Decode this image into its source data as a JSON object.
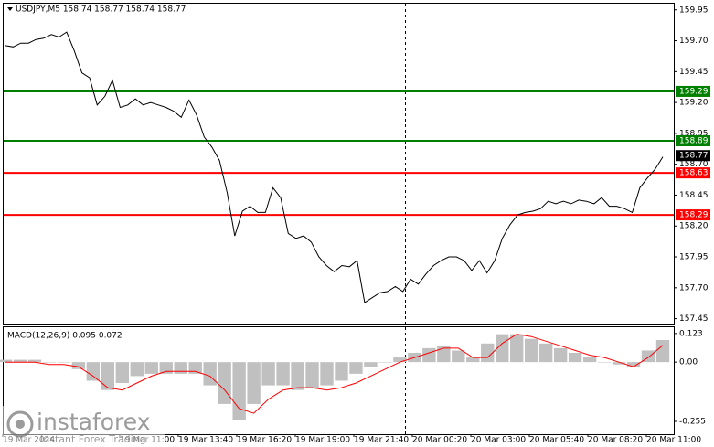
{
  "chart_data": [
    {
      "type": "line",
      "title": "USDJPY,M5  158.74 158.77 158.74 158.77",
      "values": [
        159.66,
        159.65,
        159.68,
        159.68,
        159.71,
        159.72,
        159.75,
        159.73,
        159.77,
        159.62,
        159.44,
        159.4,
        159.18,
        159.25,
        159.38,
        159.16,
        159.18,
        159.23,
        159.18,
        159.2,
        159.18,
        159.16,
        159.13,
        159.08,
        159.22,
        159.1,
        158.92,
        158.84,
        158.73,
        158.47,
        158.12,
        158.32,
        158.36,
        158.31,
        158.31,
        158.51,
        158.43,
        158.14,
        158.1,
        158.12,
        158.07,
        157.95,
        157.88,
        157.83,
        157.88,
        157.87,
        157.92,
        157.58,
        157.62,
        157.66,
        157.67,
        157.71,
        157.67,
        157.77,
        157.73,
        157.81,
        157.88,
        157.92,
        157.95,
        157.95,
        157.92,
        157.84,
        157.92,
        157.82,
        157.92,
        158.1,
        158.21,
        158.29,
        158.31,
        158.32,
        158.34,
        158.4,
        158.38,
        158.4,
        158.38,
        158.41,
        158.4,
        158.38,
        158.43,
        158.36,
        158.36,
        158.34,
        158.31,
        158.51,
        158.59,
        158.66,
        158.76
      ],
      "color": "#000000",
      "ylim": [
        157.41,
        160.0
      ],
      "yticks": [
        159.95,
        {
          "value": 159.7,
          "label": "159.70"
        },
        159.45,
        {
          "value": 159.2,
          "label": "159.20"
        },
        158.95,
        {
          "value": 158.7,
          "label": "158.70"
        },
        158.45,
        {
          "value": 158.2,
          "label": "158.20"
        },
        157.95,
        {
          "value": 157.7,
          "label": "157.70"
        },
        157.45
      ],
      "levels": [
        {
          "value": 159.29,
          "color": "#008000"
        },
        {
          "value": 158.89,
          "color": "#008000"
        },
        {
          "value": 158.63,
          "color": "#ff0000"
        },
        {
          "value": 158.29,
          "color": "#ff0000"
        }
      ],
      "last_price": 158.77,
      "xtick_labels": [
        "19 Mar 2024",
        "19 Mar 11:00",
        "19 Mar 13:40",
        "19 Mar 16:20",
        "19 Mar 19:00",
        "19 Mar 21:40",
        "20 Mar 00:20",
        "20 Mar 03:00",
        "20 Mar 05:40",
        "20 Mar 08:20",
        "20 Mar 11:00"
      ]
    },
    {
      "type": "macd",
      "title": "MACD(12,26,9) 0.095 0.072",
      "histogram": [
        0.01,
        0.01,
        0.01,
        0.0,
        0.0,
        -0.03,
        -0.08,
        -0.12,
        -0.09,
        -0.06,
        -0.05,
        -0.05,
        -0.05,
        -0.05,
        -0.1,
        -0.18,
        -0.25,
        -0.18,
        -0.1,
        -0.1,
        -0.12,
        -0.11,
        -0.1,
        -0.08,
        -0.05,
        -0.02,
        0.0,
        0.02,
        0.04,
        0.06,
        0.07,
        0.05,
        0.02,
        0.08,
        0.12,
        0.12,
        0.1,
        0.08,
        0.06,
        0.04,
        0.02,
        0.0,
        -0.01,
        -0.02,
        0.05,
        0.095
      ],
      "histogram_color": "#c0c0c0",
      "signal": [
        0.0,
        0.0,
        0.0,
        -0.01,
        -0.01,
        -0.02,
        -0.06,
        -0.11,
        -0.12,
        -0.09,
        -0.06,
        -0.04,
        -0.04,
        -0.04,
        -0.06,
        -0.12,
        -0.2,
        -0.22,
        -0.16,
        -0.12,
        -0.11,
        -0.11,
        -0.12,
        -0.11,
        -0.09,
        -0.06,
        -0.03,
        0.0,
        0.02,
        0.04,
        0.06,
        0.06,
        0.02,
        0.02,
        0.08,
        0.12,
        0.11,
        0.09,
        0.07,
        0.05,
        0.03,
        0.02,
        0.0,
        -0.02,
        0.02,
        0.072
      ],
      "signal_color": "#ff0000",
      "ylim": [
        -0.31,
        0.15
      ],
      "yticks": [
        0.123,
        {
          "value": 0,
          "label": "0.00"
        },
        -0.255
      ]
    }
  ],
  "watermark": {
    "brand": "instaforex",
    "tagline": "Instant Forex Trading"
  }
}
